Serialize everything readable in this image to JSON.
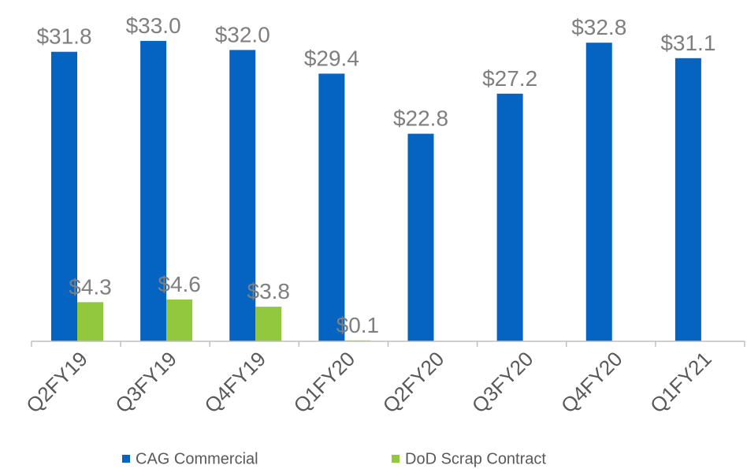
{
  "chart_data": {
    "type": "bar",
    "categories": [
      "Q2FY19",
      "Q3FY19",
      "Q4FY19",
      "Q1FY20",
      "Q2FY20",
      "Q3FY20",
      "Q4FY20",
      "Q1FY21"
    ],
    "series": [
      {
        "name": "CAG Commercial",
        "color": "#0563c1",
        "values": [
          31.8,
          33.0,
          32.0,
          29.4,
          22.8,
          27.2,
          32.8,
          31.1
        ],
        "value_labels": [
          "$31.8",
          "$33.0",
          "$32.0",
          "$29.4",
          "$22.8",
          "$27.2",
          "$32.8",
          "$31.1"
        ]
      },
      {
        "name": "DoD Scrap Contract",
        "color": "#92c83e",
        "values": [
          4.3,
          4.6,
          3.8,
          0.1,
          null,
          null,
          null,
          null
        ],
        "value_labels": [
          "$4.3",
          "$4.6",
          "$3.8",
          "$0.1",
          null,
          null,
          null,
          null
        ]
      }
    ],
    "legend": "bottom"
  }
}
